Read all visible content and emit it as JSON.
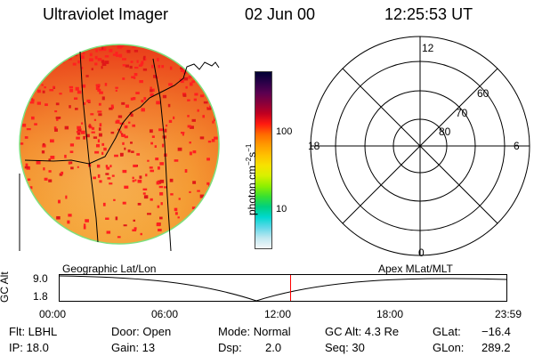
{
  "header": {
    "instrument": "Ultraviolet Imager",
    "date": "02 Jun 00",
    "time": "12:25:53 UT"
  },
  "colorbar": {
    "label_main": "photon cm",
    "label_exp1": "−2",
    "label_mid": "s",
    "label_exp2": "−1",
    "ticks": [
      "100",
      "10"
    ],
    "colors": [
      "#000033",
      "#2a0048",
      "#5a0050",
      "#8a003a",
      "#c00020",
      "#ff1a10",
      "#ff6a00",
      "#ff9a00",
      "#ffc000",
      "#f7e200",
      "#d8f000",
      "#8ef000",
      "#38e030",
      "#00d080",
      "#00d8d0",
      "#60d8e8",
      "#c0e8f0",
      "#f4f8fa"
    ]
  },
  "polar_plot": {
    "labels": {
      "top": "12",
      "bottom": "0",
      "left": "18",
      "right": "6",
      "ring60": "60",
      "ring70": "70",
      "ring80": "80"
    }
  },
  "timeline": {
    "axis_label": "GC Alt",
    "y_max": "9.0",
    "y_min": "1.8",
    "left_title": "Geographic Lat/Lon",
    "right_title": "Apex MLat/MLT",
    "x_ticks": [
      "00:00",
      "06:00",
      "12:00",
      "18:00",
      "23:59"
    ],
    "current_marker_hours": 12.43,
    "marker_color": "#ff0000"
  },
  "info": {
    "flt": "Flt: LBHL",
    "ip": "IP: 18.0",
    "door": "Door: Open",
    "gain": "Gain: 13",
    "mode": "Mode: Normal",
    "dsp_label": "Dsp:",
    "dsp_value": "2.0",
    "gcalt": "GC Alt: 4.3 Re",
    "seq": "Seq: 30",
    "glat_label": "GLat:",
    "glat_value": "−16.4",
    "glon_label": "GLon:",
    "glon_value": "289.2"
  }
}
